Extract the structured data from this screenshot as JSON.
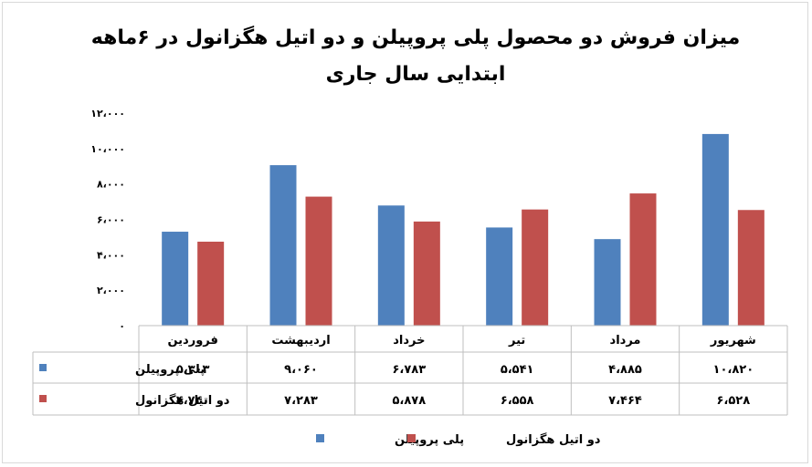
{
  "chart_data": {
    "type": "bar",
    "title": "میزان فروش دو محصول پلی پروپیلن و دو اتیل هگزانول در ۶ماهه ابتدایی سال جاری",
    "categories": [
      "شهریور",
      "مرداد",
      "تیر",
      "خرداد",
      "اردیبهشت",
      "فروردین"
    ],
    "series": [
      {
        "name": "پلی پروپیلن",
        "color": "#4F81BD",
        "values": [
          10820,
          4885,
          5541,
          6783,
          9060,
          5303
        ],
        "labels": [
          "۱۰،۸۲۰",
          "۴،۸۸۵",
          "۵،۵۴۱",
          "۶،۷۸۳",
          "۹،۰۶۰",
          "۵،۳۰۳"
        ]
      },
      {
        "name": "دو اتیل هگزانول",
        "color": "#C0504D",
        "values": [
          6528,
          7464,
          6558,
          5878,
          7283,
          4740
        ],
        "labels": [
          "۶،۵۲۸",
          "۷،۴۶۴",
          "۶،۵۵۸",
          "۵،۸۷۸",
          "۷،۲۸۳",
          "۴،۷۴۰"
        ]
      }
    ],
    "ylim": [
      0,
      12000
    ],
    "yticks": [
      0,
      2000,
      4000,
      6000,
      8000,
      10000,
      12000
    ],
    "ytick_labels": [
      "۰",
      "۲،۰۰۰",
      "۴،۰۰۰",
      "۶،۰۰۰",
      "۸،۰۰۰",
      "۱۰،۰۰۰",
      "۱۲،۰۰۰"
    ],
    "grid": false,
    "data_table": true,
    "legend": "bottom"
  }
}
